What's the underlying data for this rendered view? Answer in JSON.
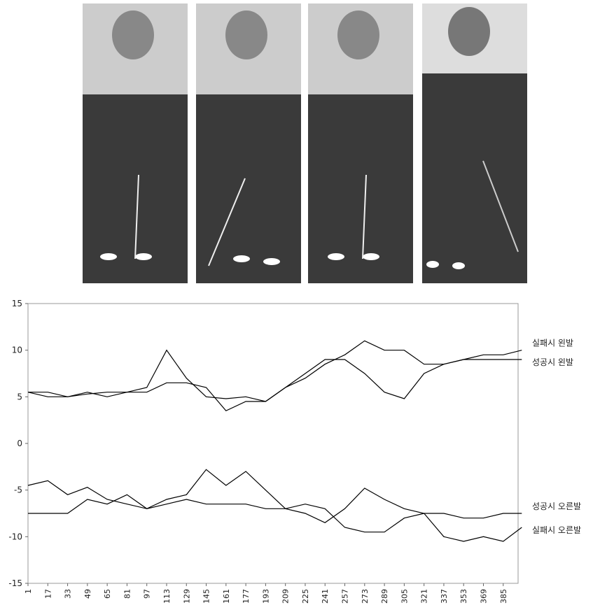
{
  "chart_data": {
    "type": "line",
    "x": [
      1,
      17,
      33,
      49,
      65,
      81,
      97,
      113,
      129,
      145,
      161,
      177,
      193,
      209,
      225,
      241,
      257,
      273,
      289,
      305,
      321,
      337,
      353,
      369,
      385,
      400
    ],
    "xlim": [
      1,
      397
    ],
    "xticks": [
      1,
      17,
      33,
      49,
      65,
      81,
      97,
      113,
      129,
      145,
      161,
      177,
      193,
      209,
      225,
      241,
      257,
      273,
      289,
      305,
      321,
      337,
      353,
      369,
      385
    ],
    "ylim": [
      -15,
      15
    ],
    "yticks": [
      -15,
      -10,
      -5,
      0,
      5,
      10,
      15
    ],
    "series": [
      {
        "name": "실패시 왼발",
        "color": "#000000",
        "values": [
          5.5,
          5,
          5,
          5.5,
          5,
          5.5,
          5.5,
          6.5,
          6.5,
          6,
          3.5,
          4.5,
          4.5,
          6,
          7.5,
          9,
          9,
          7.5,
          5.5,
          4.8,
          7.5,
          8.5,
          9,
          9.5,
          9.5,
          10
        ]
      },
      {
        "name": "성공시 왼발",
        "color": "#000000",
        "values": [
          5.5,
          5.5,
          5,
          5.3,
          5.5,
          5.5,
          6,
          10,
          7,
          5,
          4.8,
          5,
          4.5,
          6,
          7,
          8.5,
          9.5,
          11,
          10,
          10,
          8.5,
          8.5,
          9,
          9,
          9,
          9
        ]
      },
      {
        "name": "성공시 오른발",
        "color": "#000000",
        "values": [
          -7.5,
          -7.5,
          -7.5,
          -6,
          -6.5,
          -5.5,
          -7,
          -6.5,
          -6,
          -6.5,
          -6.5,
          -6.5,
          -7,
          -7,
          -6.5,
          -7,
          -9,
          -9.5,
          -9.5,
          -8,
          -7.5,
          -7.5,
          -8,
          -8,
          -7.5,
          -7.5
        ]
      },
      {
        "name": "실패시 오른발",
        "color": "#000000",
        "values": [
          -4.5,
          -4,
          -5.5,
          -4.7,
          -6,
          -6.5,
          -7,
          -6,
          -5.5,
          -2.8,
          -4.5,
          -3,
          -5,
          -7,
          -7.5,
          -8.5,
          -7,
          -4.8,
          -6,
          -7,
          -7.5,
          -10,
          -10.5,
          -10,
          -10.5,
          -9
        ]
      }
    ]
  }
}
